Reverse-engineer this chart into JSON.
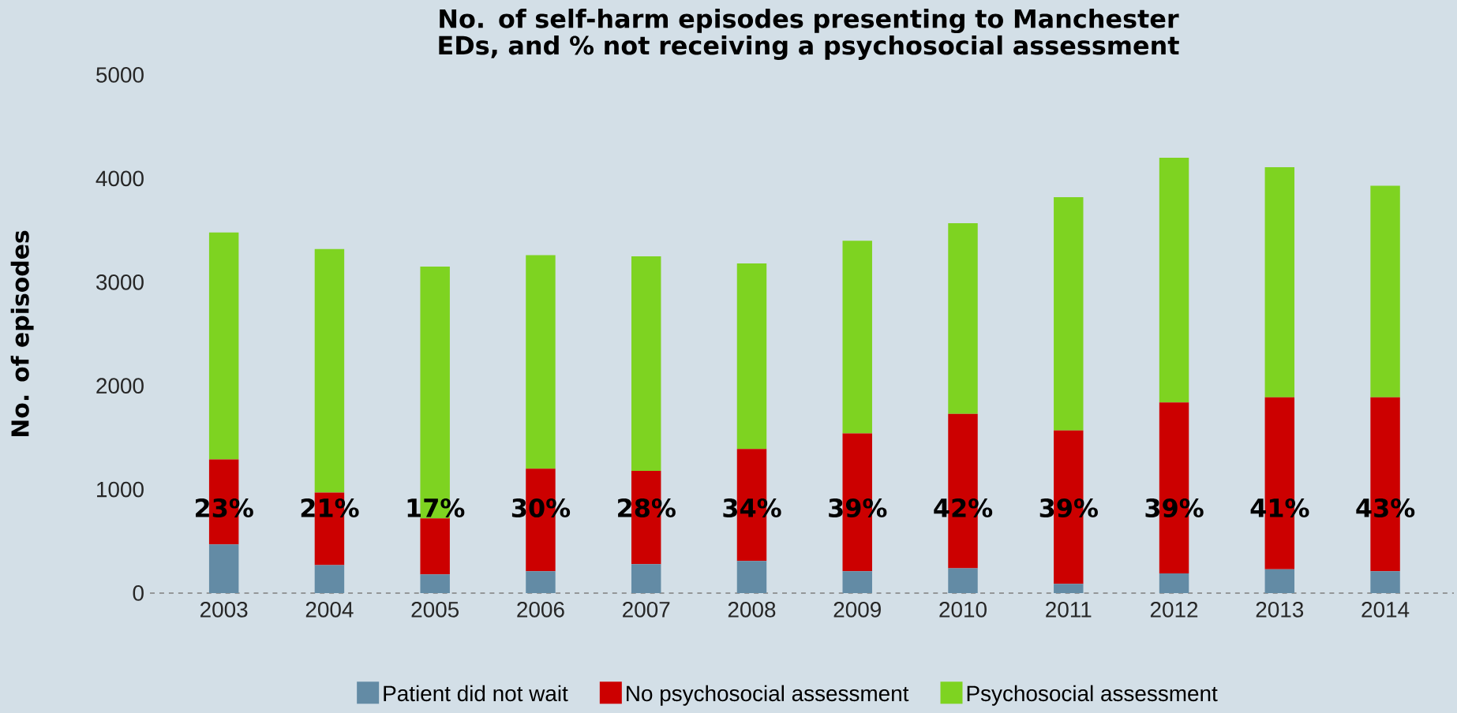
{
  "chart_data": {
    "type": "bar",
    "stacked": true,
    "title": "No. of self-harm episodes presenting to Manchester EDs, and % not receiving a psychosocial assessment",
    "ylabel": "No. of episodes",
    "categories": [
      "2003",
      "2004",
      "2005",
      "2006",
      "2007",
      "2008",
      "2009",
      "2010",
      "2011",
      "2012",
      "2013",
      "2014"
    ],
    "series": [
      {
        "name": "Patient did not wait",
        "color": "#638ba5",
        "values": [
          470,
          270,
          180,
          210,
          280,
          310,
          210,
          240,
          90,
          190,
          230,
          210
        ]
      },
      {
        "name": "No psychosocial assessment",
        "color": "#cc0000",
        "values": [
          820,
          700,
          540,
          990,
          900,
          1080,
          1330,
          1490,
          1480,
          1650,
          1660,
          1680
        ]
      },
      {
        "name": "Psychosocial assessment",
        "color": "#7ed321",
        "values": [
          2190,
          2350,
          2430,
          2060,
          2070,
          1790,
          1860,
          1840,
          2250,
          2360,
          2220,
          2040
        ]
      }
    ],
    "ylim": [
      0,
      5000
    ],
    "yticks": [
      0,
      1000,
      2000,
      3000,
      4000,
      5000
    ],
    "annotations": [
      "23%",
      "21%",
      "17%",
      "30%",
      "28%",
      "34%",
      "39%",
      "42%",
      "39%",
      "39%",
      "41%",
      "43%"
    ],
    "legend": "bottom"
  }
}
